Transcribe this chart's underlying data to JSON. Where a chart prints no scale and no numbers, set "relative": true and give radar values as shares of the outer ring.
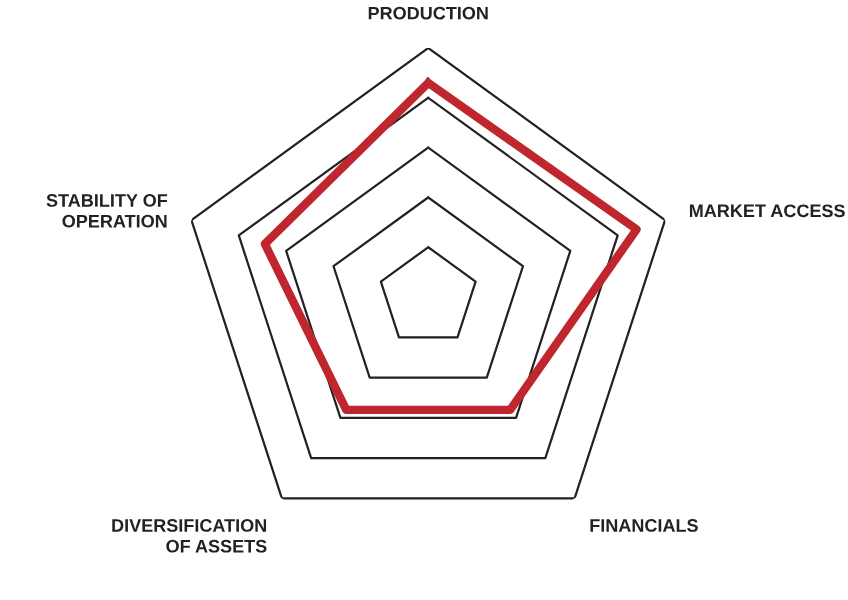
{
  "chart_data": {
    "type": "radar",
    "relative": true,
    "categories": [
      "PRODUCTION",
      "MARKET ACCESS",
      "FINANCIALS",
      "DIVERSIFICATION\nOF ASSETS",
      "STABILITY OF\nOPERATION"
    ],
    "series": [
      {
        "color": "#c0262d",
        "values": [
          0.86,
          0.88,
          0.56,
          0.56,
          0.69
        ]
      }
    ]
  }
}
